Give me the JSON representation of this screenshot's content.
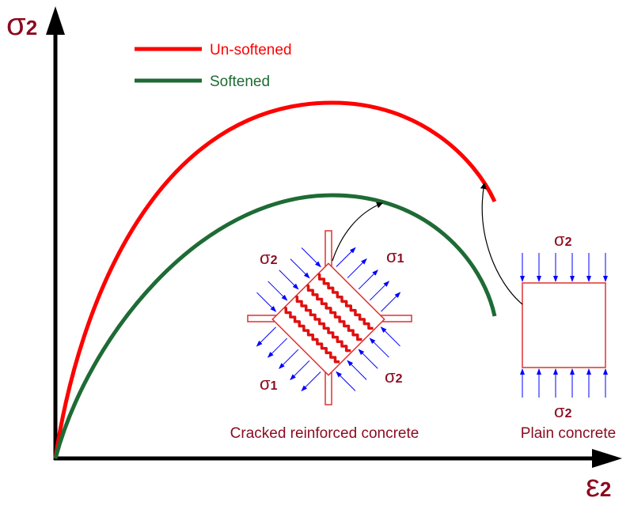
{
  "axes": {
    "y_label": {
      "symbol": "σ",
      "sub": "2"
    },
    "x_label": {
      "symbol": "ε",
      "sub": "2"
    }
  },
  "legend": [
    {
      "name": "Un-softened",
      "color": "#ff0000"
    },
    {
      "name": "Softened",
      "color": "#1e6b35"
    }
  ],
  "cracked": {
    "caption": "Cracked reinforced concrete",
    "labels": [
      {
        "symbol": "σ",
        "sub": "2"
      },
      {
        "symbol": "σ",
        "sub": "1"
      },
      {
        "symbol": "σ",
        "sub": "1"
      },
      {
        "symbol": "σ",
        "sub": "2"
      }
    ]
  },
  "plain": {
    "caption": "Plain concrete",
    "labels": [
      {
        "symbol": "σ",
        "sub": "2"
      },
      {
        "symbol": "σ",
        "sub": "2"
      }
    ]
  }
}
